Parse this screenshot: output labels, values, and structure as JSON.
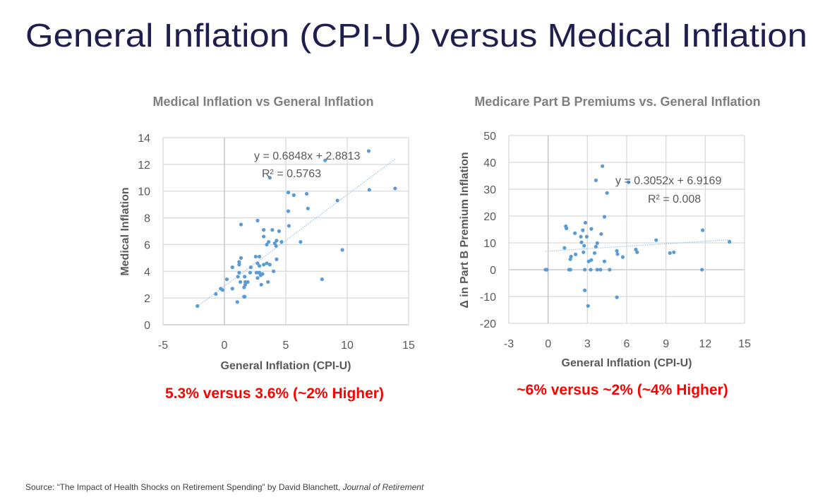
{
  "slide": {
    "title": "General Inflation (CPI-U) versus Medical Inflation",
    "source_prefix": "Source:  “The Impact of Health Shocks on Retirement Spending” by David Blanchett, ",
    "source_journal": "Journal  of Retirement",
    "colors": {
      "title": "#1f1f4f",
      "points": "#5b9bd5",
      "highlight": "#ff0000"
    }
  },
  "chart_data": [
    {
      "type": "scatter",
      "title": "Medical Inflation vs General Inflation",
      "xlabel": "General Inflation (CPI-U)",
      "ylabel": "Medical Inflation",
      "xlim": [
        -5,
        15
      ],
      "ylim": [
        0,
        14
      ],
      "xticks": [
        -5,
        0,
        5,
        10,
        15
      ],
      "yticks": [
        0,
        2,
        4,
        6,
        8,
        10,
        12,
        14
      ],
      "grid": true,
      "trendline": {
        "type": "linear",
        "slope": 0.6848,
        "intercept": 2.8813,
        "x_range": [
          -2.2,
          13.9
        ]
      },
      "equation": "y = 0.6848x + 2.8813",
      "r2": "R² = 0.5763",
      "annotation": "5.3% versus 3.6% (~2% Higher)",
      "points": [
        [
          -2.2,
          1.4
        ],
        [
          -0.7,
          2.3
        ],
        [
          -0.3,
          2.7
        ],
        [
          -0.15,
          2.6
        ],
        [
          0.2,
          3.4
        ],
        [
          0.65,
          4.3
        ],
        [
          0.65,
          2.7
        ],
        [
          1.05,
          1.7
        ],
        [
          1.1,
          3.6
        ],
        [
          1.2,
          4.7
        ],
        [
          1.2,
          4.5
        ],
        [
          1.2,
          3.9
        ],
        [
          1.35,
          5.0
        ],
        [
          1.35,
          7.5
        ],
        [
          1.3,
          3.2
        ],
        [
          1.6,
          2.1
        ],
        [
          1.65,
          2.1
        ],
        [
          1.6,
          2.8
        ],
        [
          1.65,
          3.6
        ],
        [
          1.7,
          3.2
        ],
        [
          1.9,
          3.2
        ],
        [
          1.7,
          3.0
        ],
        [
          2.1,
          3.9
        ],
        [
          2.15,
          4.3
        ],
        [
          2.55,
          5.1
        ],
        [
          2.6,
          3.9
        ],
        [
          2.7,
          3.5
        ],
        [
          2.7,
          7.8
        ],
        [
          2.7,
          4.6
        ],
        [
          2.8,
          3.9
        ],
        [
          2.85,
          5.1
        ],
        [
          2.85,
          4.4
        ],
        [
          2.85,
          3.9
        ],
        [
          2.95,
          3.7
        ],
        [
          3.0,
          3.0
        ],
        [
          3.1,
          3.8
        ],
        [
          3.2,
          7.1
        ],
        [
          3.2,
          6.6
        ],
        [
          3.2,
          4.5
        ],
        [
          3.45,
          6.0
        ],
        [
          3.45,
          4.6
        ],
        [
          3.55,
          3.2
        ],
        [
          3.6,
          6.2
        ],
        [
          3.7,
          11.0
        ],
        [
          3.7,
          4.5
        ],
        [
          3.9,
          7.1
        ],
        [
          4.0,
          4.0
        ],
        [
          4.1,
          6.1
        ],
        [
          4.2,
          5.9
        ],
        [
          4.25,
          6.3
        ],
        [
          4.25,
          4.9
        ],
        [
          4.45,
          7.0
        ],
        [
          4.65,
          6.2
        ],
        [
          5.2,
          9.9
        ],
        [
          5.2,
          8.5
        ],
        [
          5.25,
          7.4
        ],
        [
          5.65,
          9.7
        ],
        [
          6.7,
          9.8
        ],
        [
          6.8,
          8.7
        ],
        [
          6.2,
          6.2
        ],
        [
          8.2,
          12.3
        ],
        [
          9.2,
          9.3
        ],
        [
          9.6,
          5.6
        ],
        [
          7.95,
          3.4
        ],
        [
          11.8,
          10.1
        ],
        [
          13.9,
          10.2
        ],
        [
          11.75,
          13.0
        ]
      ]
    },
    {
      "type": "scatter",
      "title": "Medicare Part B Premiums vs. General Inflation",
      "xlabel": "General Inflation (CPI-U)",
      "ylabel": "Δ in Part B Premium Inflation",
      "xlim": [
        -3,
        15
      ],
      "ylim": [
        -20,
        50
      ],
      "xticks": [
        -3,
        0,
        3,
        6,
        9,
        12,
        15
      ],
      "yticks": [
        -20,
        -10,
        0,
        10,
        20,
        30,
        40,
        50
      ],
      "grid": true,
      "trendline": {
        "type": "linear",
        "slope": 0.3052,
        "intercept": 6.9169,
        "x_range": [
          -0.2,
          13.9
        ]
      },
      "equation": "y = 0.3052x + 6.9169",
      "r2": "R² = 0.008",
      "annotation": "~6% versus ~2% (~4% Higher)",
      "points": [
        [
          -0.2,
          0
        ],
        [
          -0.1,
          0
        ],
        [
          1.25,
          8.1
        ],
        [
          1.35,
          16.2
        ],
        [
          1.4,
          15.4
        ],
        [
          1.6,
          0
        ],
        [
          1.7,
          0
        ],
        [
          1.7,
          3.9
        ],
        [
          1.75,
          4.9
        ],
        [
          2.05,
          13.6
        ],
        [
          2.1,
          5.7
        ],
        [
          2.5,
          12.3
        ],
        [
          2.55,
          10.2
        ],
        [
          2.65,
          14.7
        ],
        [
          2.7,
          6.5
        ],
        [
          2.75,
          8.9
        ],
        [
          2.8,
          0
        ],
        [
          2.8,
          -7.7
        ],
        [
          2.85,
          17.5
        ],
        [
          2.95,
          12.3
        ],
        [
          3.05,
          -13.5
        ],
        [
          3.1,
          3.1
        ],
        [
          3.25,
          0
        ],
        [
          3.3,
          15.2
        ],
        [
          3.3,
          3.6
        ],
        [
          3.55,
          6.2
        ],
        [
          3.65,
          8.6
        ],
        [
          3.75,
          9.9
        ],
        [
          3.65,
          33.3
        ],
        [
          3.75,
          0
        ],
        [
          4.0,
          0
        ],
        [
          4.05,
          13.3
        ],
        [
          4.15,
          38.6
        ],
        [
          4.3,
          19.7
        ],
        [
          4.3,
          3.1
        ],
        [
          4.5,
          28.6
        ],
        [
          4.7,
          0
        ],
        [
          5.25,
          7.0
        ],
        [
          5.3,
          5.8
        ],
        [
          5.25,
          -10.3
        ],
        [
          5.7,
          4.7
        ],
        [
          6.15,
          32.6
        ],
        [
          6.7,
          7.5
        ],
        [
          6.8,
          6.5
        ],
        [
          8.25,
          11.0
        ],
        [
          9.3,
          6.2
        ],
        [
          9.6,
          6.5
        ],
        [
          11.8,
          14.7
        ],
        [
          11.75,
          0
        ],
        [
          13.85,
          10.4
        ]
      ]
    }
  ]
}
